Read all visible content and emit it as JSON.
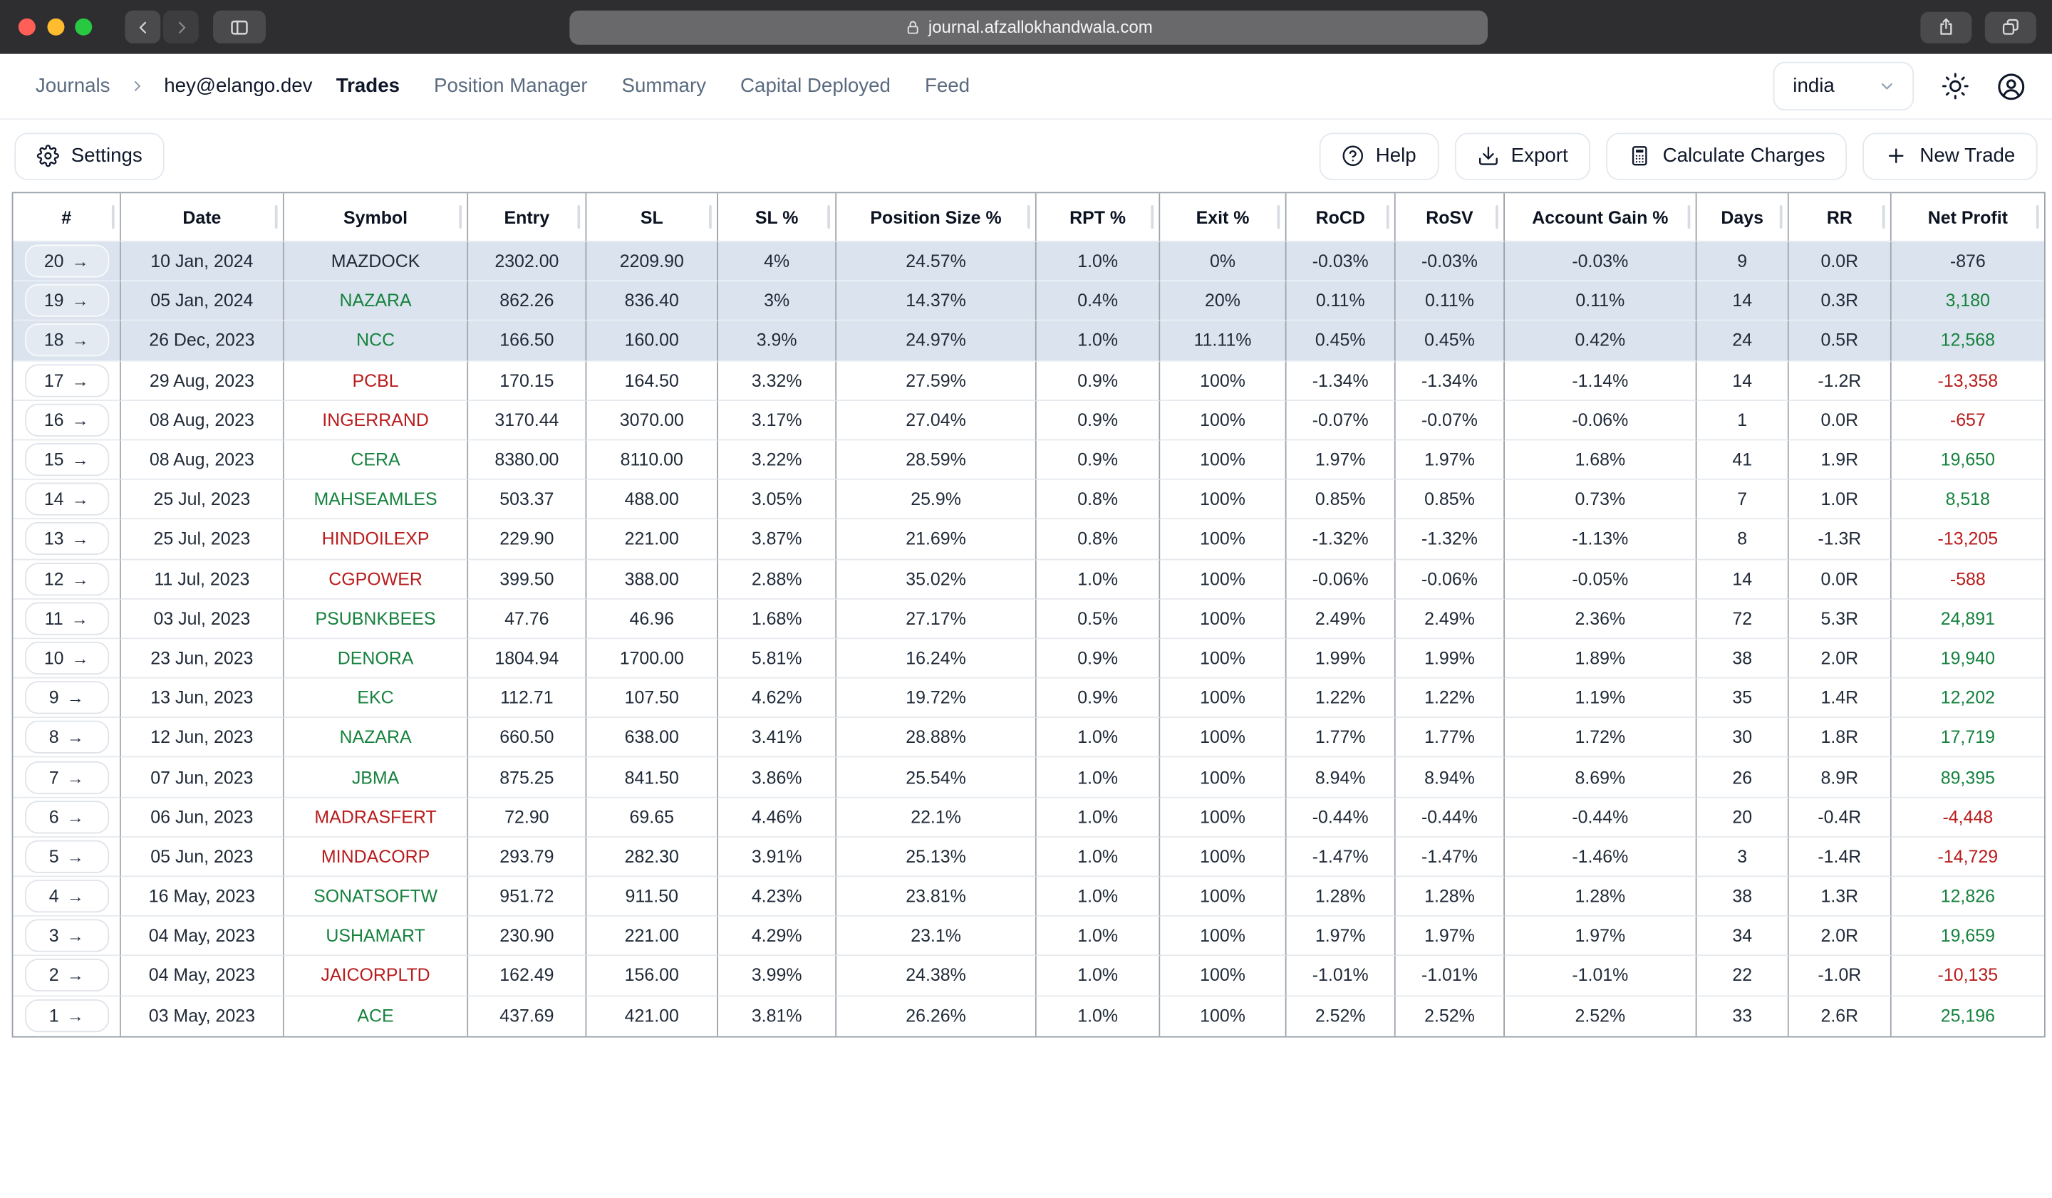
{
  "browser": {
    "url": "journal.afzallokhandwala.com"
  },
  "nav": {
    "breadcrumb": {
      "journals": "Journals",
      "account": "hey@elango.dev"
    },
    "tabs": [
      {
        "label": "Trades",
        "active": true
      },
      {
        "label": "Position Manager",
        "active": false
      },
      {
        "label": "Summary",
        "active": false
      },
      {
        "label": "Capital Deployed",
        "active": false
      },
      {
        "label": "Feed",
        "active": false
      }
    ],
    "region": "india"
  },
  "toolbar": {
    "settings": "Settings",
    "help": "Help",
    "export": "Export",
    "calculate_charges": "Calculate Charges",
    "new_trade": "New Trade"
  },
  "colors": {
    "profit_green": "#16823e",
    "loss_red": "#b91c1c",
    "highlight_row": "#dbe4ee",
    "traffic_red": "#ff5f57",
    "traffic_yellow": "#febc2e",
    "traffic_green": "#28c840"
  },
  "table": {
    "columns": [
      "#",
      "Date",
      "Symbol",
      "Entry",
      "SL",
      "SL %",
      "Position Size %",
      "RPT %",
      "Exit %",
      "RoCD",
      "RoSV",
      "Account Gain %",
      "Days",
      "RR",
      "Net Profit"
    ],
    "rows": [
      {
        "num": 20,
        "date": "10 Jan, 2024",
        "symbol": "MAZDOCK",
        "symbol_color": "dark",
        "entry": "2302.00",
        "sl": "2209.90",
        "sl_pct": "4%",
        "position_size": "24.57%",
        "rpt": "1.0%",
        "exit": "0%",
        "rocd": "-0.03%",
        "rosv": "-0.03%",
        "account_gain": "-0.03%",
        "days": 9,
        "rr": "0.0R",
        "net_profit": "-876",
        "profit_color": "dark",
        "highlighted": true
      },
      {
        "num": 19,
        "date": "05 Jan, 2024",
        "symbol": "NAZARA",
        "symbol_color": "green",
        "entry": "862.26",
        "sl": "836.40",
        "sl_pct": "3%",
        "position_size": "14.37%",
        "rpt": "0.4%",
        "exit": "20%",
        "rocd": "0.11%",
        "rosv": "0.11%",
        "account_gain": "0.11%",
        "days": 14,
        "rr": "0.3R",
        "net_profit": "3,180",
        "profit_color": "green",
        "highlighted": true
      },
      {
        "num": 18,
        "date": "26 Dec, 2023",
        "symbol": "NCC",
        "symbol_color": "green",
        "entry": "166.50",
        "sl": "160.00",
        "sl_pct": "3.9%",
        "position_size": "24.97%",
        "rpt": "1.0%",
        "exit": "11.11%",
        "rocd": "0.45%",
        "rosv": "0.45%",
        "account_gain": "0.42%",
        "days": 24,
        "rr": "0.5R",
        "net_profit": "12,568",
        "profit_color": "green",
        "highlighted": true
      },
      {
        "num": 17,
        "date": "29 Aug, 2023",
        "symbol": "PCBL",
        "symbol_color": "red",
        "entry": "170.15",
        "sl": "164.50",
        "sl_pct": "3.32%",
        "position_size": "27.59%",
        "rpt": "0.9%",
        "exit": "100%",
        "rocd": "-1.34%",
        "rosv": "-1.34%",
        "account_gain": "-1.14%",
        "days": 14,
        "rr": "-1.2R",
        "net_profit": "-13,358",
        "profit_color": "red",
        "highlighted": false
      },
      {
        "num": 16,
        "date": "08 Aug, 2023",
        "symbol": "INGERRAND",
        "symbol_color": "red",
        "entry": "3170.44",
        "sl": "3070.00",
        "sl_pct": "3.17%",
        "position_size": "27.04%",
        "rpt": "0.9%",
        "exit": "100%",
        "rocd": "-0.07%",
        "rosv": "-0.07%",
        "account_gain": "-0.06%",
        "days": 1,
        "rr": "0.0R",
        "net_profit": "-657",
        "profit_color": "red",
        "highlighted": false
      },
      {
        "num": 15,
        "date": "08 Aug, 2023",
        "symbol": "CERA",
        "symbol_color": "green",
        "entry": "8380.00",
        "sl": "8110.00",
        "sl_pct": "3.22%",
        "position_size": "28.59%",
        "rpt": "0.9%",
        "exit": "100%",
        "rocd": "1.97%",
        "rosv": "1.97%",
        "account_gain": "1.68%",
        "days": 41,
        "rr": "1.9R",
        "net_profit": "19,650",
        "profit_color": "green",
        "highlighted": false
      },
      {
        "num": 14,
        "date": "25 Jul, 2023",
        "symbol": "MAHSEAMLES",
        "symbol_color": "green",
        "entry": "503.37",
        "sl": "488.00",
        "sl_pct": "3.05%",
        "position_size": "25.9%",
        "rpt": "0.8%",
        "exit": "100%",
        "rocd": "0.85%",
        "rosv": "0.85%",
        "account_gain": "0.73%",
        "days": 7,
        "rr": "1.0R",
        "net_profit": "8,518",
        "profit_color": "green",
        "highlighted": false
      },
      {
        "num": 13,
        "date": "25 Jul, 2023",
        "symbol": "HINDOILEXP",
        "symbol_color": "red",
        "entry": "229.90",
        "sl": "221.00",
        "sl_pct": "3.87%",
        "position_size": "21.69%",
        "rpt": "0.8%",
        "exit": "100%",
        "rocd": "-1.32%",
        "rosv": "-1.32%",
        "account_gain": "-1.13%",
        "days": 8,
        "rr": "-1.3R",
        "net_profit": "-13,205",
        "profit_color": "red",
        "highlighted": false
      },
      {
        "num": 12,
        "date": "11 Jul, 2023",
        "symbol": "CGPOWER",
        "symbol_color": "red",
        "entry": "399.50",
        "sl": "388.00",
        "sl_pct": "2.88%",
        "position_size": "35.02%",
        "rpt": "1.0%",
        "exit": "100%",
        "rocd": "-0.06%",
        "rosv": "-0.06%",
        "account_gain": "-0.05%",
        "days": 14,
        "rr": "0.0R",
        "net_profit": "-588",
        "profit_color": "red",
        "highlighted": false
      },
      {
        "num": 11,
        "date": "03 Jul, 2023",
        "symbol": "PSUBNKBEES",
        "symbol_color": "green",
        "entry": "47.76",
        "sl": "46.96",
        "sl_pct": "1.68%",
        "position_size": "27.17%",
        "rpt": "0.5%",
        "exit": "100%",
        "rocd": "2.49%",
        "rosv": "2.49%",
        "account_gain": "2.36%",
        "days": 72,
        "rr": "5.3R",
        "net_profit": "24,891",
        "profit_color": "green",
        "highlighted": false
      },
      {
        "num": 10,
        "date": "23 Jun, 2023",
        "symbol": "DENORA",
        "symbol_color": "green",
        "entry": "1804.94",
        "sl": "1700.00",
        "sl_pct": "5.81%",
        "position_size": "16.24%",
        "rpt": "0.9%",
        "exit": "100%",
        "rocd": "1.99%",
        "rosv": "1.99%",
        "account_gain": "1.89%",
        "days": 38,
        "rr": "2.0R",
        "net_profit": "19,940",
        "profit_color": "green",
        "highlighted": false
      },
      {
        "num": 9,
        "date": "13 Jun, 2023",
        "symbol": "EKC",
        "symbol_color": "green",
        "entry": "112.71",
        "sl": "107.50",
        "sl_pct": "4.62%",
        "position_size": "19.72%",
        "rpt": "0.9%",
        "exit": "100%",
        "rocd": "1.22%",
        "rosv": "1.22%",
        "account_gain": "1.19%",
        "days": 35,
        "rr": "1.4R",
        "net_profit": "12,202",
        "profit_color": "green",
        "highlighted": false
      },
      {
        "num": 8,
        "date": "12 Jun, 2023",
        "symbol": "NAZARA",
        "symbol_color": "green",
        "entry": "660.50",
        "sl": "638.00",
        "sl_pct": "3.41%",
        "position_size": "28.88%",
        "rpt": "1.0%",
        "exit": "100%",
        "rocd": "1.77%",
        "rosv": "1.77%",
        "account_gain": "1.72%",
        "days": 30,
        "rr": "1.8R",
        "net_profit": "17,719",
        "profit_color": "green",
        "highlighted": false
      },
      {
        "num": 7,
        "date": "07 Jun, 2023",
        "symbol": "JBMA",
        "symbol_color": "green",
        "entry": "875.25",
        "sl": "841.50",
        "sl_pct": "3.86%",
        "position_size": "25.54%",
        "rpt": "1.0%",
        "exit": "100%",
        "rocd": "8.94%",
        "rosv": "8.94%",
        "account_gain": "8.69%",
        "days": 26,
        "rr": "8.9R",
        "net_profit": "89,395",
        "profit_color": "green",
        "highlighted": false
      },
      {
        "num": 6,
        "date": "06 Jun, 2023",
        "symbol": "MADRASFERT",
        "symbol_color": "red",
        "entry": "72.90",
        "sl": "69.65",
        "sl_pct": "4.46%",
        "position_size": "22.1%",
        "rpt": "1.0%",
        "exit": "100%",
        "rocd": "-0.44%",
        "rosv": "-0.44%",
        "account_gain": "-0.44%",
        "days": 20,
        "rr": "-0.4R",
        "net_profit": "-4,448",
        "profit_color": "red",
        "highlighted": false
      },
      {
        "num": 5,
        "date": "05 Jun, 2023",
        "symbol": "MINDACORP",
        "symbol_color": "red",
        "entry": "293.79",
        "sl": "282.30",
        "sl_pct": "3.91%",
        "position_size": "25.13%",
        "rpt": "1.0%",
        "exit": "100%",
        "rocd": "-1.47%",
        "rosv": "-1.47%",
        "account_gain": "-1.46%",
        "days": 3,
        "rr": "-1.4R",
        "net_profit": "-14,729",
        "profit_color": "red",
        "highlighted": false
      },
      {
        "num": 4,
        "date": "16 May, 2023",
        "symbol": "SONATSOFTW",
        "symbol_color": "green",
        "entry": "951.72",
        "sl": "911.50",
        "sl_pct": "4.23%",
        "position_size": "23.81%",
        "rpt": "1.0%",
        "exit": "100%",
        "rocd": "1.28%",
        "rosv": "1.28%",
        "account_gain": "1.28%",
        "days": 38,
        "rr": "1.3R",
        "net_profit": "12,826",
        "profit_color": "green",
        "highlighted": false
      },
      {
        "num": 3,
        "date": "04 May, 2023",
        "symbol": "USHAMART",
        "symbol_color": "green",
        "entry": "230.90",
        "sl": "221.00",
        "sl_pct": "4.29%",
        "position_size": "23.1%",
        "rpt": "1.0%",
        "exit": "100%",
        "rocd": "1.97%",
        "rosv": "1.97%",
        "account_gain": "1.97%",
        "days": 34,
        "rr": "2.0R",
        "net_profit": "19,659",
        "profit_color": "green",
        "highlighted": false
      },
      {
        "num": 2,
        "date": "04 May, 2023",
        "symbol": "JAICORPLTD",
        "symbol_color": "red",
        "entry": "162.49",
        "sl": "156.00",
        "sl_pct": "3.99%",
        "position_size": "24.38%",
        "rpt": "1.0%",
        "exit": "100%",
        "rocd": "-1.01%",
        "rosv": "-1.01%",
        "account_gain": "-1.01%",
        "days": 22,
        "rr": "-1.0R",
        "net_profit": "-10,135",
        "profit_color": "red",
        "highlighted": false
      },
      {
        "num": 1,
        "date": "03 May, 2023",
        "symbol": "ACE",
        "symbol_color": "green",
        "entry": "437.69",
        "sl": "421.00",
        "sl_pct": "3.81%",
        "position_size": "26.26%",
        "rpt": "1.0%",
        "exit": "100%",
        "rocd": "2.52%",
        "rosv": "2.52%",
        "account_gain": "2.52%",
        "days": 33,
        "rr": "2.6R",
        "net_profit": "25,196",
        "profit_color": "green",
        "highlighted": false
      }
    ]
  }
}
